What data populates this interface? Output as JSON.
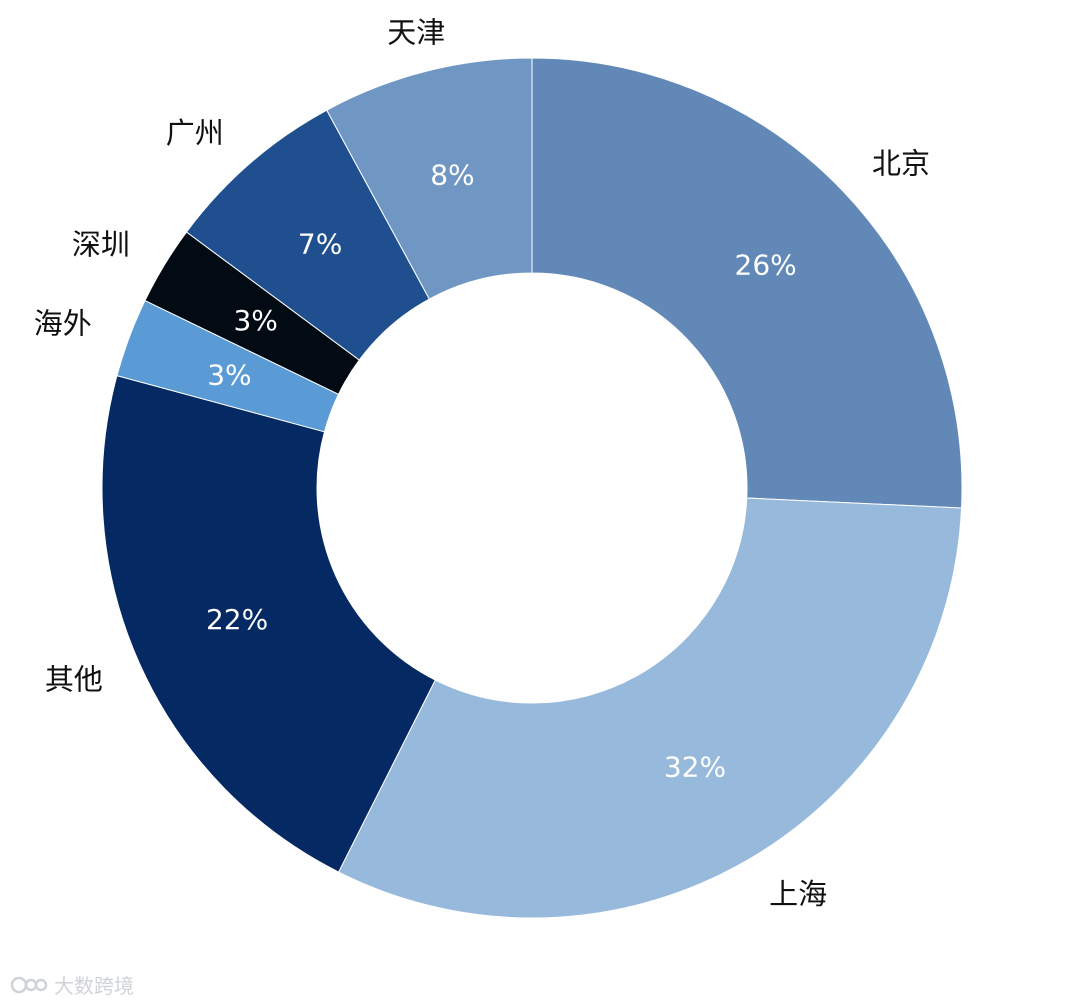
{
  "chart_data": {
    "type": "pie",
    "donut": true,
    "slices": [
      {
        "label": "北京",
        "value": 26,
        "value_label": "26%",
        "color": "#6188b7"
      },
      {
        "label": "上海",
        "value": 32,
        "value_label": "32%",
        "color": "#97b9db"
      },
      {
        "label": "其他",
        "value": 22,
        "value_label": "22%",
        "color": "#052962"
      },
      {
        "label": "海外",
        "value": 3,
        "value_label": "3%",
        "color": "#5b9bd5"
      },
      {
        "label": "深圳",
        "value": 3,
        "value_label": "3%",
        "color": "#020a14"
      },
      {
        "label": "广州",
        "value": 7,
        "value_label": "7%",
        "color": "#1f4f8f"
      },
      {
        "label": "天津",
        "value": 8,
        "value_label": "8%",
        "color": "#7097c4"
      }
    ]
  },
  "watermark": {
    "text": "大数跨境"
  }
}
